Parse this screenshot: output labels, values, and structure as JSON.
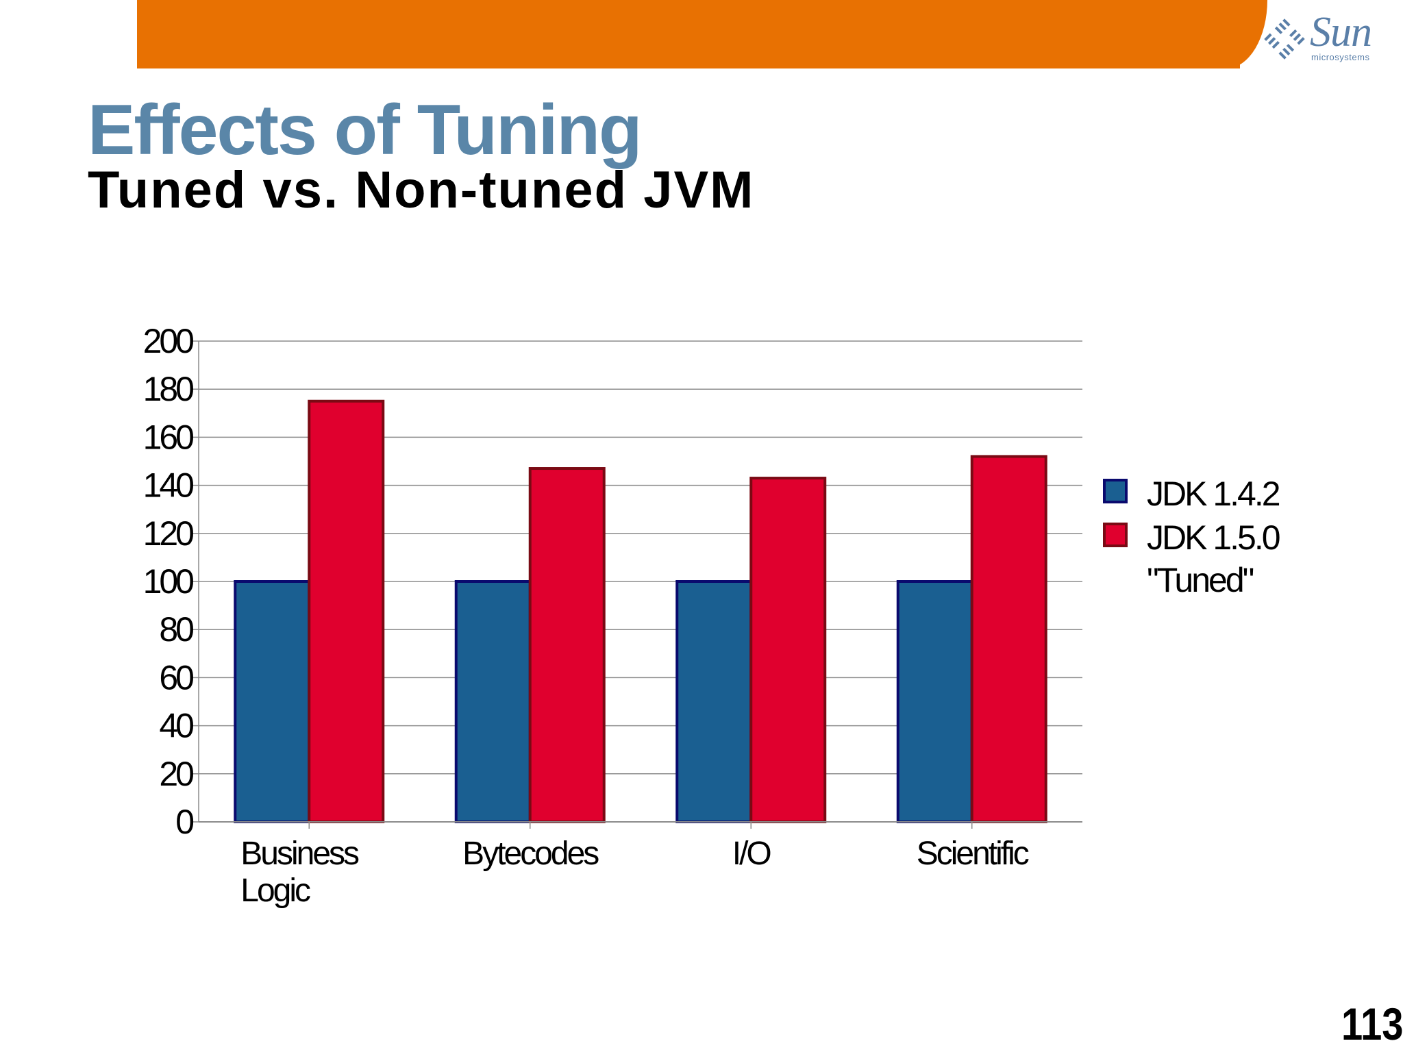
{
  "header": {
    "logo_text": "Sun",
    "logo_subtext": "microsystems",
    "banner_color": "#e87102"
  },
  "slide": {
    "title": "Effects of Tuning",
    "subtitle": "Tuned vs. Non-tuned JVM",
    "page_number": "113"
  },
  "chart_data": {
    "type": "bar",
    "categories": [
      "Business\nLogic",
      "Bytecodes",
      "I/O",
      "Scientific"
    ],
    "series": [
      {
        "name": "JDK 1.4.2",
        "values": [
          100,
          100,
          100,
          100
        ],
        "color": "#1a5f91",
        "border": "#0a0a6e"
      },
      {
        "name": "JDK 1.5.0\n\"Tuned\"",
        "values": [
          175,
          147,
          143,
          152
        ],
        "color": "#e0002e",
        "border": "#7a0a14"
      }
    ],
    "ylim": [
      0,
      200
    ],
    "yticks": [
      0,
      20,
      40,
      60,
      80,
      100,
      120,
      140,
      160,
      180,
      200
    ],
    "grid": true,
    "legend_position": "right",
    "title": "",
    "xlabel": "",
    "ylabel": ""
  }
}
